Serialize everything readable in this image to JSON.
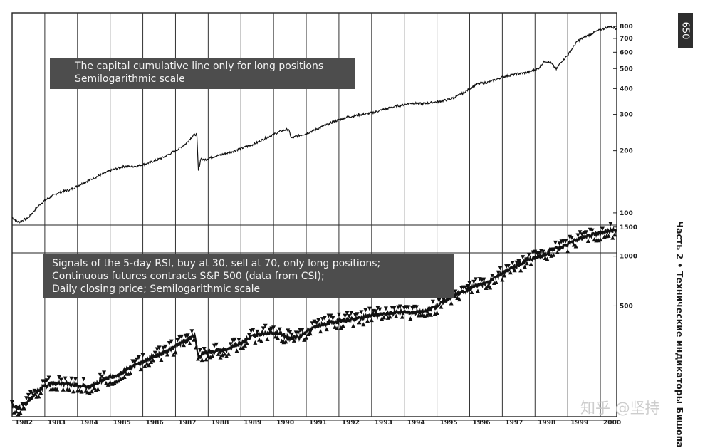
{
  "page_number": "650",
  "side_caption": "Часть 2 • Технические индикаторы Бишопа",
  "watermark": "知乎 @坚持",
  "annotations": {
    "top": [
      "The capital cumulative line only for long positions",
      "Semilogarithmic scale"
    ],
    "bottom": [
      "Signals of the 5-day RSI, buy at 30, sell at 70, only long positions;",
      "Continuous futures contracts S&P 500 (data from CSI);",
      "Daily closing price; Semilogarithmic scale"
    ]
  },
  "chart_data": [
    {
      "type": "line",
      "title": "The capital cumulative line only for long positions",
      "subtitle": "Semilogarithmic scale",
      "yscale": "log",
      "ylim": [
        88,
        860
      ],
      "yticks": [
        100,
        200,
        300,
        400,
        500,
        600,
        700,
        800
      ],
      "xlim": [
        1982.0,
        2000.5
      ],
      "series": [
        {
          "x": [
            1982.0,
            1982.2,
            1982.5,
            1982.8,
            1983.0,
            1983.4,
            1983.8,
            1984.2,
            1984.6,
            1985.0,
            1985.4,
            1985.8,
            1986.2,
            1986.6,
            1987.0,
            1987.3,
            1987.55,
            1987.65,
            1987.7,
            1987.78,
            1987.85,
            1988.2,
            1988.6,
            1989.0,
            1989.4,
            1989.8,
            1990.2,
            1990.45,
            1990.55,
            1990.7,
            1991.0,
            1991.4,
            1991.8,
            1992.2,
            1992.6,
            1993.0,
            1993.4,
            1993.8,
            1994.2,
            1994.6,
            1995.0,
            1995.4,
            1995.8,
            1996.2,
            1996.6,
            1997.0,
            1997.4,
            1997.8,
            1998.1,
            1998.3,
            1998.5,
            1998.65,
            1998.8,
            1999.0,
            1999.3,
            1999.6,
            1999.9,
            2000.0,
            2000.3,
            2000.5
          ],
          "y": [
            95,
            90,
            95,
            108,
            115,
            125,
            130,
            140,
            150,
            160,
            168,
            168,
            175,
            185,
            200,
            215,
            238,
            240,
            160,
            185,
            180,
            188,
            195,
            205,
            215,
            232,
            248,
            255,
            230,
            235,
            242,
            258,
            275,
            290,
            298,
            305,
            318,
            330,
            340,
            338,
            345,
            355,
            380,
            420,
            430,
            455,
            470,
            480,
            500,
            545,
            530,
            495,
            540,
            580,
            680,
            720,
            760,
            770,
            800,
            780
          ]
        }
      ]
    },
    {
      "type": "line",
      "title": "Signals of the 5-day RSI, buy at 30, sell at 70, only long positions;",
      "subtitle": "Continuous futures contracts S&P 500 (data from CSI); Daily closing price; Semilogarithmic scale",
      "yscale": "log",
      "ylim": [
        110,
        1720
      ],
      "yticks": [
        500,
        1000,
        1500
      ],
      "xlim": [
        1982.0,
        2000.5
      ],
      "x_tick_labels": [
        "1982",
        "1983",
        "1984",
        "1985",
        "1986",
        "1987",
        "1988",
        "1989",
        "1990",
        "1991",
        "1992",
        "1993",
        "1994",
        "1995",
        "1996",
        "1997",
        "1998",
        "1999",
        "2000"
      ],
      "series": [
        {
          "x": [
            1982.0,
            1982.3,
            1982.6,
            1982.9,
            1983.2,
            1983.6,
            1984.0,
            1984.4,
            1984.8,
            1985.2,
            1985.6,
            1986.0,
            1986.4,
            1986.8,
            1987.2,
            1987.6,
            1987.7,
            1987.85,
            1988.2,
            1988.6,
            1989.0,
            1989.4,
            1989.8,
            1990.2,
            1990.5,
            1990.8,
            1991.0,
            1991.4,
            1991.8,
            1992.2,
            1992.6,
            1993.0,
            1993.4,
            1993.8,
            1994.2,
            1994.6,
            1995.0,
            1995.4,
            1995.8,
            1996.2,
            1996.6,
            1997.0,
            1997.4,
            1997.8,
            1998.2,
            1998.5,
            1998.8,
            1999.2,
            1999.6,
            2000.0,
            2000.3,
            2000.5
          ],
          "y": [
            125,
            120,
            140,
            160,
            170,
            170,
            165,
            162,
            180,
            190,
            210,
            230,
            250,
            270,
            300,
            330,
            240,
            260,
            265,
            275,
            300,
            330,
            345,
            340,
            320,
            325,
            350,
            380,
            400,
            410,
            420,
            440,
            445,
            460,
            455,
            460,
            500,
            560,
            610,
            660,
            700,
            790,
            870,
            960,
            1000,
            1100,
            1120,
            1250,
            1330,
            1380,
            1420,
            1440
          ]
        }
      ]
    }
  ]
}
